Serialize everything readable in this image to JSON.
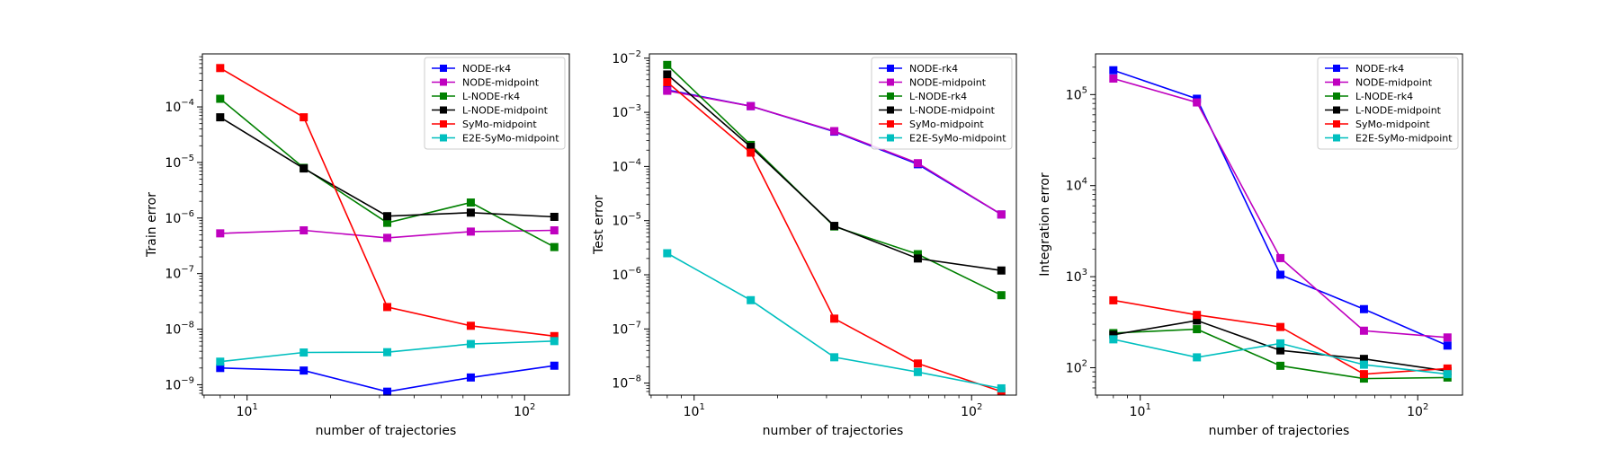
{
  "chart_data": [
    {
      "type": "line",
      "xscale": "log",
      "yscale": "log",
      "xlabel": "number of trajectories",
      "ylabel": "Train error",
      "xlim": [
        6.9,
        145
      ],
      "ylim": [
        6.5e-10,
        0.0009
      ],
      "xticks": [
        {
          "value": 10,
          "label": "10",
          "exp": "1"
        },
        {
          "value": 100,
          "label": "10",
          "exp": "2"
        }
      ],
      "yticks": [
        {
          "value": 1e-09,
          "label": "10",
          "exp": "−9"
        },
        {
          "value": 1e-08,
          "label": "10",
          "exp": "−8"
        },
        {
          "value": 1e-07,
          "label": "10",
          "exp": "−7"
        },
        {
          "value": 1e-06,
          "label": "10",
          "exp": "−6"
        },
        {
          "value": 1e-05,
          "label": "10",
          "exp": "−5"
        },
        {
          "value": 0.0001,
          "label": "10",
          "exp": "−4"
        }
      ],
      "legend_position": "top-right",
      "x": [
        8,
        16,
        32,
        64,
        128
      ],
      "series": [
        {
          "name": "NODE-rk4",
          "color": "#0000ff",
          "values": [
            2e-09,
            1.8e-09,
            7.5e-10,
            1.35e-09,
            2.2e-09
          ]
        },
        {
          "name": "NODE-midpoint",
          "color": "#bf00bf",
          "values": [
            5.3e-07,
            6e-07,
            4.4e-07,
            5.7e-07,
            6e-07
          ]
        },
        {
          "name": "L-NODE-rk4",
          "color": "#008000",
          "values": [
            0.00014,
            8e-06,
            8.2e-07,
            1.9e-06,
            3e-07
          ]
        },
        {
          "name": "L-NODE-midpoint",
          "color": "#000000",
          "values": [
            6.5e-05,
            7.8e-06,
            1.08e-06,
            1.25e-06,
            1.05e-06
          ]
        },
        {
          "name": "SyMo-midpoint",
          "color": "#ff0000",
          "values": [
            0.0005,
            6.5e-05,
            2.5e-08,
            1.15e-08,
            7.5e-09
          ]
        },
        {
          "name": "E2E-SyMo-midpoint",
          "color": "#00bfbf",
          "values": [
            2.6e-09,
            3.8e-09,
            3.85e-09,
            5.4e-09,
            6.1e-09
          ]
        }
      ]
    },
    {
      "type": "line",
      "xscale": "log",
      "yscale": "log",
      "xlabel": "number of trajectories",
      "ylabel": "Test error",
      "xlim": [
        6.9,
        145
      ],
      "ylim": [
        6e-09,
        0.012
      ],
      "xticks": [
        {
          "value": 10,
          "label": "10",
          "exp": "1"
        },
        {
          "value": 100,
          "label": "10",
          "exp": "2"
        }
      ],
      "yticks": [
        {
          "value": 1e-08,
          "label": "10",
          "exp": "−8"
        },
        {
          "value": 1e-07,
          "label": "10",
          "exp": "−7"
        },
        {
          "value": 1e-06,
          "label": "10",
          "exp": "−6"
        },
        {
          "value": 1e-05,
          "label": "10",
          "exp": "−5"
        },
        {
          "value": 0.0001,
          "label": "10",
          "exp": "−4"
        },
        {
          "value": 0.001,
          "label": "10",
          "exp": "−3"
        },
        {
          "value": 0.01,
          "label": "10",
          "exp": "−2"
        }
      ],
      "legend_position": "top-right",
      "x": [
        8,
        16,
        32,
        64,
        128
      ],
      "series": [
        {
          "name": "NODE-rk4",
          "color": "#0000ff",
          "values": [
            0.0026,
            0.0013,
            0.00044,
            0.00011,
            1.3e-05
          ]
        },
        {
          "name": "NODE-midpoint",
          "color": "#bf00bf",
          "values": [
            0.0025,
            0.0013,
            0.00045,
            0.000115,
            1.3e-05
          ]
        },
        {
          "name": "L-NODE-rk4",
          "color": "#008000",
          "values": [
            0.0075,
            0.00025,
            7.8e-06,
            2.4e-06,
            4.2e-07
          ]
        },
        {
          "name": "L-NODE-midpoint",
          "color": "#000000",
          "values": [
            0.005,
            0.00023,
            8e-06,
            2e-06,
            1.2e-06
          ]
        },
        {
          "name": "SyMo-midpoint",
          "color": "#ff0000",
          "values": [
            0.0036,
            0.00018,
            1.55e-07,
            2.3e-08,
            7e-09
          ]
        },
        {
          "name": "E2E-SyMo-midpoint",
          "color": "#00bfbf",
          "values": [
            2.5e-06,
            3.4e-07,
            3e-08,
            1.6e-08,
            8e-09
          ]
        }
      ]
    },
    {
      "type": "line",
      "xscale": "log",
      "yscale": "log",
      "xlabel": "number of trajectories",
      "ylabel": "Integration error",
      "xlim": [
        6.9,
        145
      ],
      "ylim": [
        50,
        280000.0
      ],
      "xticks": [
        {
          "value": 10,
          "label": "10",
          "exp": "1"
        },
        {
          "value": 100,
          "label": "10",
          "exp": "2"
        }
      ],
      "yticks": [
        {
          "value": 100,
          "label": "10",
          "exp": "2"
        },
        {
          "value": 1000,
          "label": "10",
          "exp": "3"
        },
        {
          "value": 10000,
          "label": "10",
          "exp": "4"
        },
        {
          "value": 100000,
          "label": "10",
          "exp": "5"
        }
      ],
      "legend_position": "top-right",
      "x": [
        8,
        16,
        32,
        64,
        128
      ],
      "series": [
        {
          "name": "NODE-rk4",
          "color": "#0000ff",
          "values": [
            185000.0,
            90000.0,
            1050.0,
            440,
            175
          ]
        },
        {
          "name": "NODE-midpoint",
          "color": "#bf00bf",
          "values": [
            150000.0,
            82000.0,
            1600.0,
            255,
            215
          ]
        },
        {
          "name": "L-NODE-rk4",
          "color": "#008000",
          "values": [
            240,
            265,
            105,
            76,
            78
          ]
        },
        {
          "name": "L-NODE-midpoint",
          "color": "#000000",
          "values": [
            230,
            330,
            155,
            125,
            92
          ]
        },
        {
          "name": "SyMo-midpoint",
          "color": "#ff0000",
          "values": [
            550,
            380,
            280,
            85,
            98
          ]
        },
        {
          "name": "E2E-SyMo-midpoint",
          "color": "#00bfbf",
          "values": [
            205,
            130,
            185,
            108,
            85
          ]
        }
      ]
    }
  ]
}
